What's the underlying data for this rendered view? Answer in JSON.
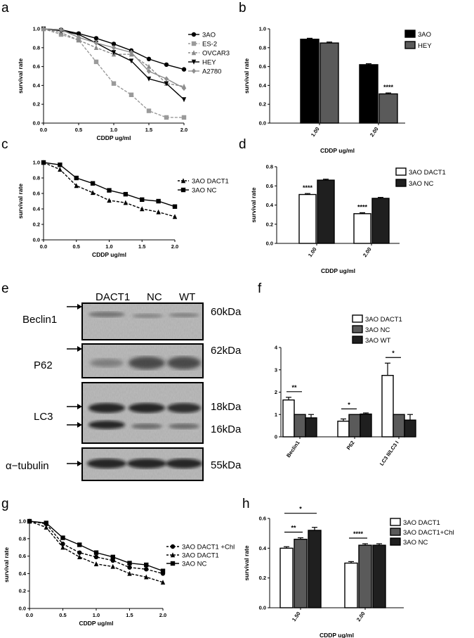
{
  "figure": {
    "panel_labels": [
      "a",
      "b",
      "c",
      "d",
      "e",
      "f",
      "g",
      "h"
    ],
    "colors": {
      "black": "#000000",
      "dark": "#1f1f1f",
      "mid": "#5a5a5a",
      "light": "#999999",
      "es2": "#9a9a9a",
      "ovcar3": "#8a8a8a",
      "a2780": "#8e8e8e"
    }
  },
  "chart_data": [
    {
      "panel": "a",
      "type": "line",
      "xlabel": "CDDP ug/ml",
      "ylabel": "survival rate",
      "xlim": [
        0,
        2.0
      ],
      "ylim": [
        0,
        1.0
      ],
      "xticks": [
        "0.0",
        "0.5",
        "1.0",
        "1.5",
        "2.0"
      ],
      "yticks": [
        "0.0",
        "0.2",
        "0.4",
        "0.6",
        "0.8",
        "1.0"
      ],
      "x": [
        0,
        0.25,
        0.5,
        0.75,
        1.0,
        1.25,
        1.5,
        1.75,
        2.0
      ],
      "legend_position": "right",
      "series": [
        {
          "name": "3AO",
          "values": [
            1.0,
            0.99,
            0.95,
            0.9,
            0.84,
            0.77,
            0.68,
            0.62,
            0.57
          ],
          "marker": "circle",
          "dash": false
        },
        {
          "name": "ES-2",
          "values": [
            1.0,
            0.94,
            0.88,
            0.65,
            0.42,
            0.3,
            0.13,
            0.06,
            0.06
          ],
          "marker": "square",
          "dash": true
        },
        {
          "name": "OVCAR3",
          "values": [
            1.0,
            0.96,
            0.88,
            0.8,
            0.73,
            0.73,
            0.6,
            0.42,
            0.39
          ],
          "marker": "triangle",
          "dash": true
        },
        {
          "name": "HEY",
          "values": [
            1.0,
            0.98,
            0.94,
            0.85,
            0.75,
            0.66,
            0.47,
            0.42,
            0.25
          ],
          "marker": "triangle-down",
          "dash": false
        },
        {
          "name": "A2780",
          "values": [
            1.0,
            0.99,
            0.91,
            0.85,
            0.8,
            0.75,
            0.55,
            0.47,
            0.37
          ],
          "marker": "diamond",
          "dash": false
        }
      ]
    },
    {
      "panel": "b",
      "type": "bar",
      "xlabel": "CDDP ug/ml",
      "ylabel": "survival rate",
      "ylim": [
        0,
        1.0
      ],
      "yticks": [
        "0.0",
        "0.2",
        "0.4",
        "0.6",
        "0.8",
        "1.0"
      ],
      "categories": [
        "1.00",
        "2.00"
      ],
      "legend_position": "top-right",
      "series": [
        {
          "name": "3AO",
          "values": [
            0.89,
            0.62
          ],
          "errors": [
            0.01,
            0.01
          ],
          "fill": "#000000"
        },
        {
          "name": "HEY",
          "values": [
            0.85,
            0.31
          ],
          "errors": [
            0.01,
            0.01
          ],
          "fill": "#5a5a5a"
        }
      ],
      "annotations": [
        {
          "category": 1,
          "series": 1,
          "text": "****"
        }
      ]
    },
    {
      "panel": "c",
      "type": "line",
      "xlabel": "CDDP ug/ml",
      "ylabel": "survival rate",
      "xlim": [
        0,
        2.0
      ],
      "ylim": [
        0,
        1.0
      ],
      "xticks": [
        "0.0",
        "0.5",
        "1.0",
        "1.5",
        "2.0"
      ],
      "yticks": [
        "0.0",
        "0.2",
        "0.4",
        "0.6",
        "0.8",
        "1.0"
      ],
      "x": [
        0,
        0.25,
        0.5,
        0.75,
        1.0,
        1.25,
        1.5,
        1.75,
        2.0
      ],
      "legend_position": "right",
      "series": [
        {
          "name": "3AO DACT1",
          "values": [
            1.0,
            0.91,
            0.7,
            0.61,
            0.51,
            0.48,
            0.4,
            0.36,
            0.3
          ],
          "marker": "triangle",
          "dash": true
        },
        {
          "name": "3AO NC",
          "values": [
            1.0,
            0.97,
            0.8,
            0.73,
            0.64,
            0.59,
            0.52,
            0.5,
            0.43
          ],
          "marker": "square",
          "dash": false
        }
      ]
    },
    {
      "panel": "d",
      "type": "bar",
      "xlabel": "CDDP ug/ml",
      "ylabel": "survival rate",
      "ylim": [
        0,
        0.8
      ],
      "yticks": [
        "0.0",
        "0.2",
        "0.4",
        "0.6",
        "0.8"
      ],
      "categories": [
        "1.00",
        "2.00"
      ],
      "legend_position": "top-right",
      "series": [
        {
          "name": "3AO DACT1",
          "values": [
            0.51,
            0.31
          ],
          "errors": [
            0.01,
            0.01
          ],
          "fill": "#ffffff"
        },
        {
          "name": "3AO NC",
          "values": [
            0.66,
            0.47
          ],
          "errors": [
            0.01,
            0.01
          ],
          "fill": "#1f1f1f"
        }
      ],
      "annotations": [
        {
          "category": 0,
          "series": 0,
          "text": "****"
        },
        {
          "category": 1,
          "series": 0,
          "text": "****"
        }
      ]
    },
    {
      "panel": "f",
      "type": "bar",
      "ylim": [
        0,
        4
      ],
      "yticks": [
        "0",
        "1",
        "2",
        "3",
        "4"
      ],
      "categories": [
        "Beclin1",
        "P62",
        "LC3 II/LC3 I"
      ],
      "legend_position": "top-right",
      "series": [
        {
          "name": "3AO DACT1",
          "values": [
            1.65,
            0.7,
            2.75
          ],
          "errors": [
            0.12,
            0.1,
            0.55
          ],
          "fill": "#ffffff"
        },
        {
          "name": "3AO NC",
          "values": [
            1.0,
            1.0,
            1.0
          ],
          "errors": [
            0,
            0,
            0
          ],
          "fill": "#5a5a5a"
        },
        {
          "name": "3AO WT",
          "values": [
            0.85,
            1.02,
            0.75
          ],
          "errors": [
            0.15,
            0.05,
            0.25
          ],
          "fill": "#1f1f1f"
        }
      ],
      "significance": [
        {
          "category": 0,
          "from_series": 0,
          "to_series": 1,
          "text": "**"
        },
        {
          "category": 1,
          "from_series": 0,
          "to_series": 1,
          "text": "*"
        },
        {
          "category": 2,
          "from_series": 0,
          "to_series": 1,
          "text": "*"
        }
      ]
    },
    {
      "panel": "g",
      "type": "line",
      "xlabel": "CDDP ug/ml",
      "ylabel": "survival rate",
      "xlim": [
        0,
        2.0
      ],
      "ylim": [
        0,
        1.0
      ],
      "xticks": [
        "0.0",
        "0.5",
        "1.0",
        "1.5",
        "2.0"
      ],
      "yticks": [
        "0.0",
        "0.2",
        "0.4",
        "0.6",
        "0.8",
        "1.0"
      ],
      "x": [
        0,
        0.25,
        0.5,
        0.75,
        1.0,
        1.25,
        1.5,
        1.75,
        2.0
      ],
      "legend_position": "right",
      "series": [
        {
          "name": "3AO DACT1 +Chl",
          "values": [
            1.0,
            0.97,
            0.74,
            0.64,
            0.59,
            0.55,
            0.47,
            0.45,
            0.4
          ],
          "marker": "circle",
          "dash": true
        },
        {
          "name": "3AO DACT1",
          "values": [
            1.0,
            0.93,
            0.7,
            0.59,
            0.51,
            0.48,
            0.4,
            0.36,
            0.3
          ],
          "marker": "triangle",
          "dash": true
        },
        {
          "name": "3AO NC",
          "values": [
            1.0,
            0.98,
            0.81,
            0.73,
            0.64,
            0.59,
            0.52,
            0.5,
            0.43
          ],
          "marker": "square",
          "dash": false
        }
      ]
    },
    {
      "panel": "h",
      "type": "bar",
      "xlabel": "CDDP ug/ml",
      "ylabel": "survival rate",
      "ylim": [
        0,
        0.6
      ],
      "yticks": [
        "0.0",
        "0.2",
        "0.4",
        "0.6"
      ],
      "categories": [
        "1.50",
        "2.00"
      ],
      "legend_position": "top-right",
      "series": [
        {
          "name": "3AO DACT1",
          "values": [
            0.4,
            0.3
          ],
          "errors": [
            0.01,
            0.01
          ],
          "fill": "#ffffff"
        },
        {
          "name": "3AO DACT1+Chl",
          "values": [
            0.46,
            0.42
          ],
          "errors": [
            0.01,
            0.01
          ],
          "fill": "#5a5a5a"
        },
        {
          "name": "3AO NC",
          "values": [
            0.52,
            0.42
          ],
          "errors": [
            0.02,
            0.01
          ],
          "fill": "#1f1f1f"
        }
      ],
      "significance": [
        {
          "category": 0,
          "from_series": 0,
          "to_series": 2,
          "text": "*",
          "level": 1
        },
        {
          "category": 0,
          "from_series": 0,
          "to_series": 1,
          "text": "**",
          "level": 0
        },
        {
          "category": 1,
          "from_series": 0,
          "to_series": 1,
          "text": "****",
          "level": 0
        }
      ]
    }
  ],
  "western_blot": {
    "panel": "e",
    "lanes": [
      "DACT1",
      "NC",
      "WT"
    ],
    "rows": [
      {
        "protein": "Beclin1",
        "sizes": [
          "60kDa"
        ],
        "bands": 1
      },
      {
        "protein": "P62",
        "sizes": [
          "62kDa"
        ],
        "bands": 1
      },
      {
        "protein": "LC3",
        "sizes": [
          "18kDa",
          "16kDa"
        ],
        "bands": 2
      },
      {
        "protein": "α−tubulin",
        "sizes": [
          "55kDa"
        ],
        "bands": 1
      }
    ]
  }
}
